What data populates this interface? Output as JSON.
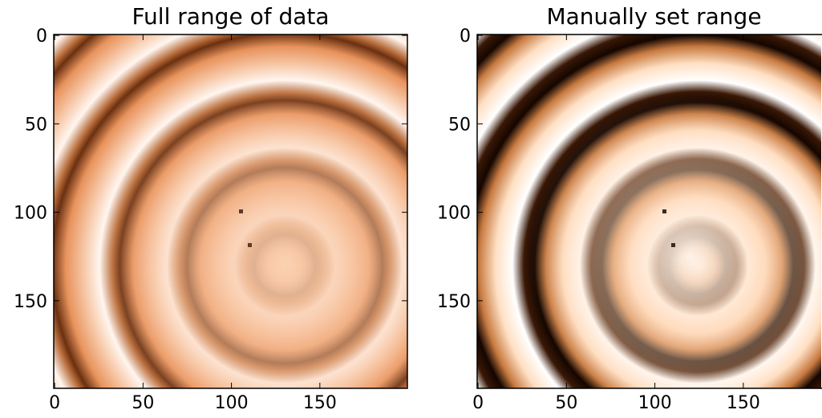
{
  "chart_data": [
    {
      "type": "image",
      "title": "Full range of data",
      "xlim": [
        -0.5,
        199.5
      ],
      "ylim": [
        199.5,
        -0.5
      ],
      "xticks": [
        0,
        50,
        100,
        150
      ],
      "yticks": [
        0,
        50,
        100,
        150
      ]
    },
    {
      "type": "image",
      "title": "Manually set range",
      "xlim": [
        -0.5,
        199.5
      ],
      "ylim": [
        199.5,
        -0.5
      ],
      "xticks": [
        0,
        50,
        100,
        150
      ],
      "yticks": [
        0,
        50,
        100,
        150
      ]
    }
  ]
}
